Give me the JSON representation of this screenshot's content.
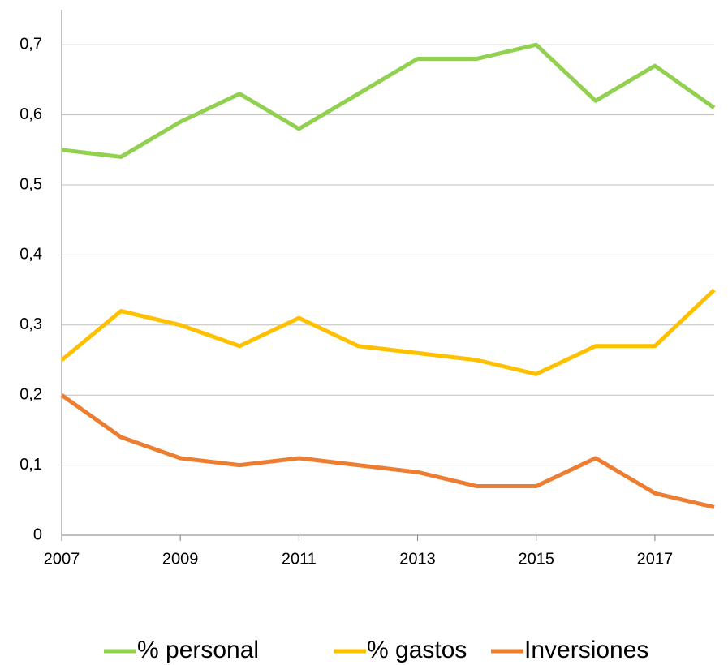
{
  "chart_data": {
    "type": "line",
    "x": [
      2007,
      2008,
      2009,
      2010,
      2011,
      2012,
      2013,
      2014,
      2015,
      2016,
      2017,
      2018
    ],
    "series": [
      {
        "name": "% personal",
        "color": "#92d050",
        "values": [
          0.55,
          0.54,
          0.59,
          0.63,
          0.58,
          0.63,
          0.68,
          0.68,
          0.7,
          0.62,
          0.67,
          0.61
        ]
      },
      {
        "name": "% gastos",
        "color": "#ffc000",
        "values": [
          0.25,
          0.32,
          0.3,
          0.27,
          0.31,
          0.27,
          0.26,
          0.25,
          0.23,
          0.27,
          0.27,
          0.35
        ]
      },
      {
        "name": "Inversiones",
        "color": "#ed7d31",
        "values": [
          0.2,
          0.14,
          0.11,
          0.1,
          0.11,
          0.1,
          0.09,
          0.07,
          0.07,
          0.11,
          0.06,
          0.04
        ]
      }
    ],
    "xlim": [
      2007,
      2018
    ],
    "xticks": [
      2007,
      2009,
      2011,
      2013,
      2015,
      2017
    ],
    "ylim": [
      0,
      0.75
    ],
    "yticks": [
      0,
      {
        "value": 0.1,
        "label": "0,1"
      },
      {
        "value": 0.2,
        "label": "0,2"
      },
      {
        "value": 0.3,
        "label": "0,3"
      },
      {
        "value": 0.4,
        "label": "0,4"
      },
      {
        "value": 0.5,
        "label": "0,5"
      },
      {
        "value": 0.6,
        "label": "0,6"
      },
      {
        "value": 0.7,
        "label": "0,7"
      }
    ],
    "grid": true,
    "legend": "bottom"
  }
}
